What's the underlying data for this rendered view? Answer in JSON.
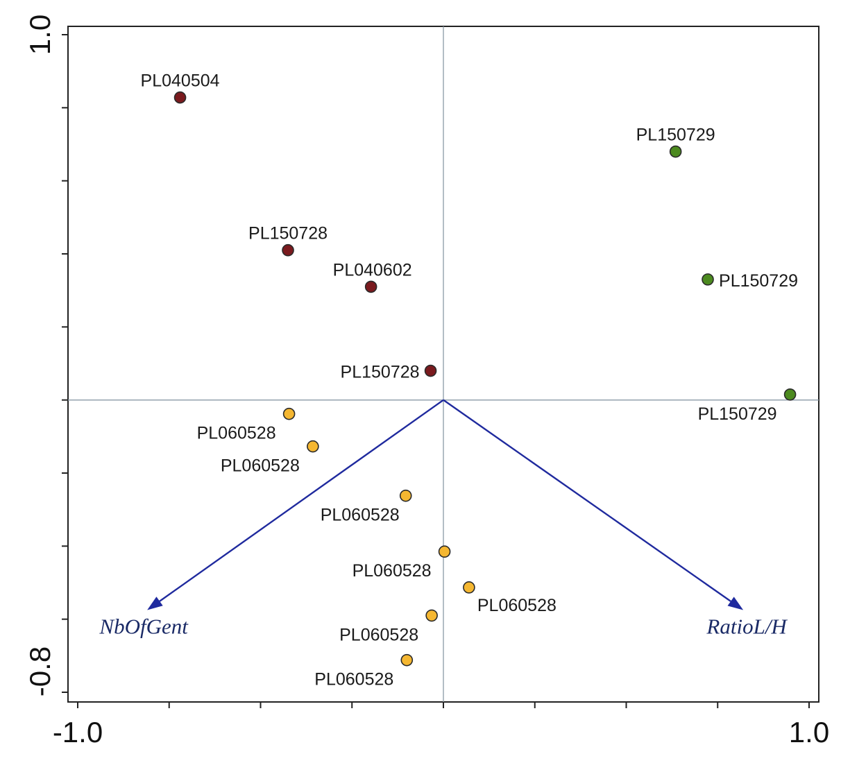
{
  "chart_data": {
    "type": "scatter",
    "title": "",
    "xlabel": "",
    "ylabel": "",
    "xlim": [
      -1.0,
      1.0
    ],
    "ylim": [
      -0.8,
      1.0
    ],
    "x_tick_labels": [
      "-1.0",
      "1.0"
    ],
    "y_tick_labels": [
      "-0.8",
      "1.0"
    ],
    "grid": false,
    "reference_lines": {
      "x": 0,
      "y": 0
    },
    "group_colors": {
      "PL040504": "#7a1a1e",
      "PL150728": "#7a1a1e",
      "PL040602": "#7a1a1e",
      "PL150729": "#4c8a1f",
      "PL060528": "#f5b731"
    },
    "points": [
      {
        "label": "PL040504",
        "x": -0.72,
        "y": 0.828,
        "color": "#7a1a1e"
      },
      {
        "label": "PL150728",
        "x": -0.425,
        "y": 0.41,
        "color": "#7a1a1e"
      },
      {
        "label": "PL040602",
        "x": -0.198,
        "y": 0.31,
        "color": "#7a1a1e"
      },
      {
        "label": "PL150728",
        "x": -0.035,
        "y": 0.08,
        "color": "#7a1a1e"
      },
      {
        "label": "PL150729",
        "x": 0.635,
        "y": 0.68,
        "color": "#4c8a1f"
      },
      {
        "label": "PL150729",
        "x": 0.723,
        "y": 0.33,
        "color": "#4c8a1f"
      },
      {
        "label": "PL150729",
        "x": 0.948,
        "y": 0.015,
        "color": "#4c8a1f"
      },
      {
        "label": "PL060528",
        "x": -0.422,
        "y": -0.038,
        "color": "#f5b731"
      },
      {
        "label": "PL060528",
        "x": -0.357,
        "y": -0.127,
        "color": "#f5b731"
      },
      {
        "label": "PL060528",
        "x": -0.103,
        "y": -0.262,
        "color": "#f5b731"
      },
      {
        "label": "PL060528",
        "x": 0.003,
        "y": -0.415,
        "color": "#f5b731"
      },
      {
        "label": "PL060528",
        "x": 0.07,
        "y": -0.513,
        "color": "#f5b731"
      },
      {
        "label": "PL060528",
        "x": -0.032,
        "y": -0.59,
        "color": "#f5b731"
      },
      {
        "label": "PL060528",
        "x": -0.1,
        "y": -0.712,
        "color": "#f5b731"
      }
    ],
    "vectors": [
      {
        "label": "NbOfGent",
        "x": -0.81,
        "y": -0.575,
        "color": "#1f2a9e"
      },
      {
        "label": "RatioL/H",
        "x": 0.82,
        "y": -0.575,
        "color": "#1f2a9e"
      }
    ]
  }
}
